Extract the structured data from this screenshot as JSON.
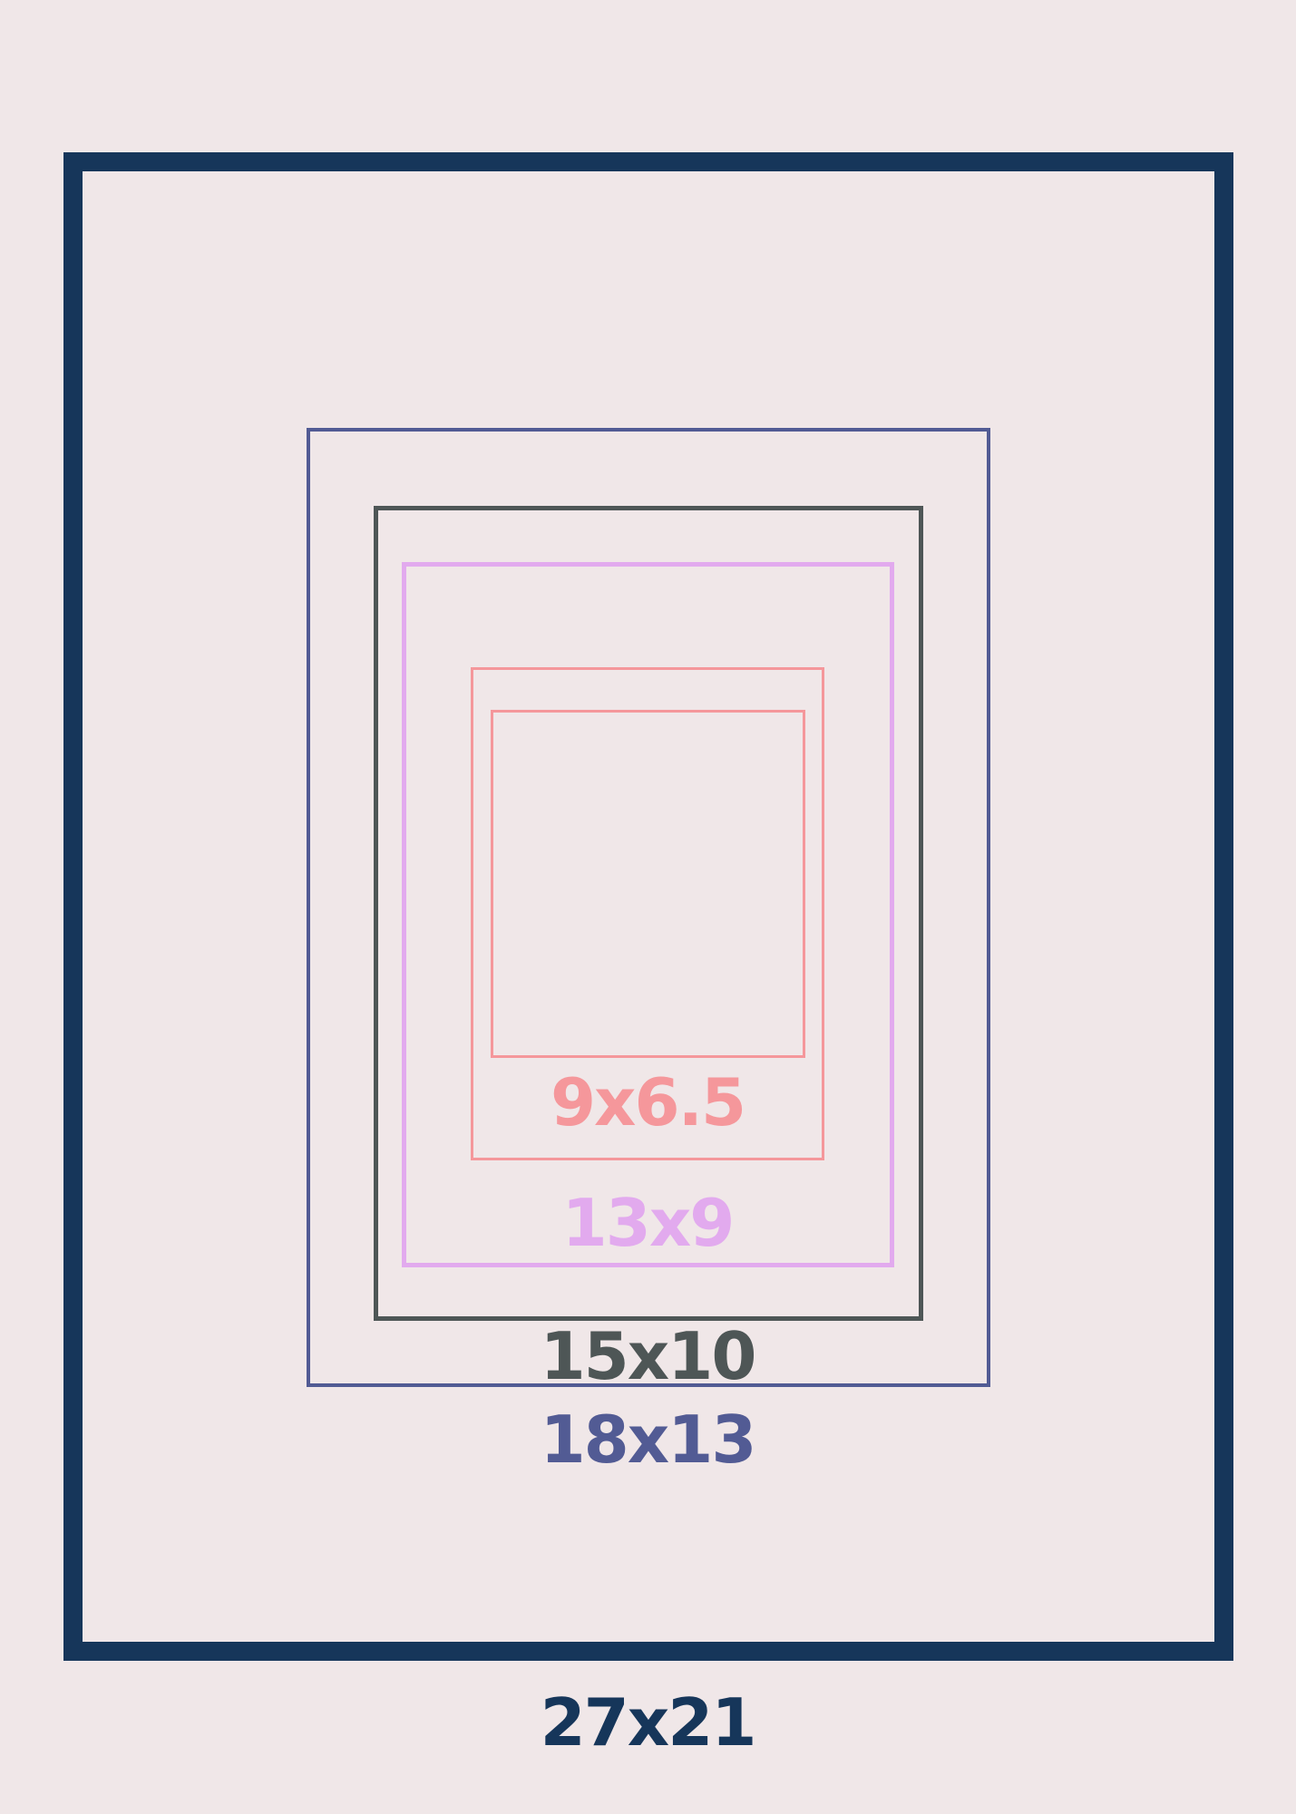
{
  "frames": [
    {
      "label": "27x21",
      "color": "#16365a"
    },
    {
      "label": "18x13",
      "color": "#525b94"
    },
    {
      "label": "15x10",
      "color": "#4e5656"
    },
    {
      "label": "13x9",
      "color": "#e2aaee"
    },
    {
      "label": "9x6.5",
      "color": "#f5979b"
    }
  ],
  "background": "#f0e7e8"
}
